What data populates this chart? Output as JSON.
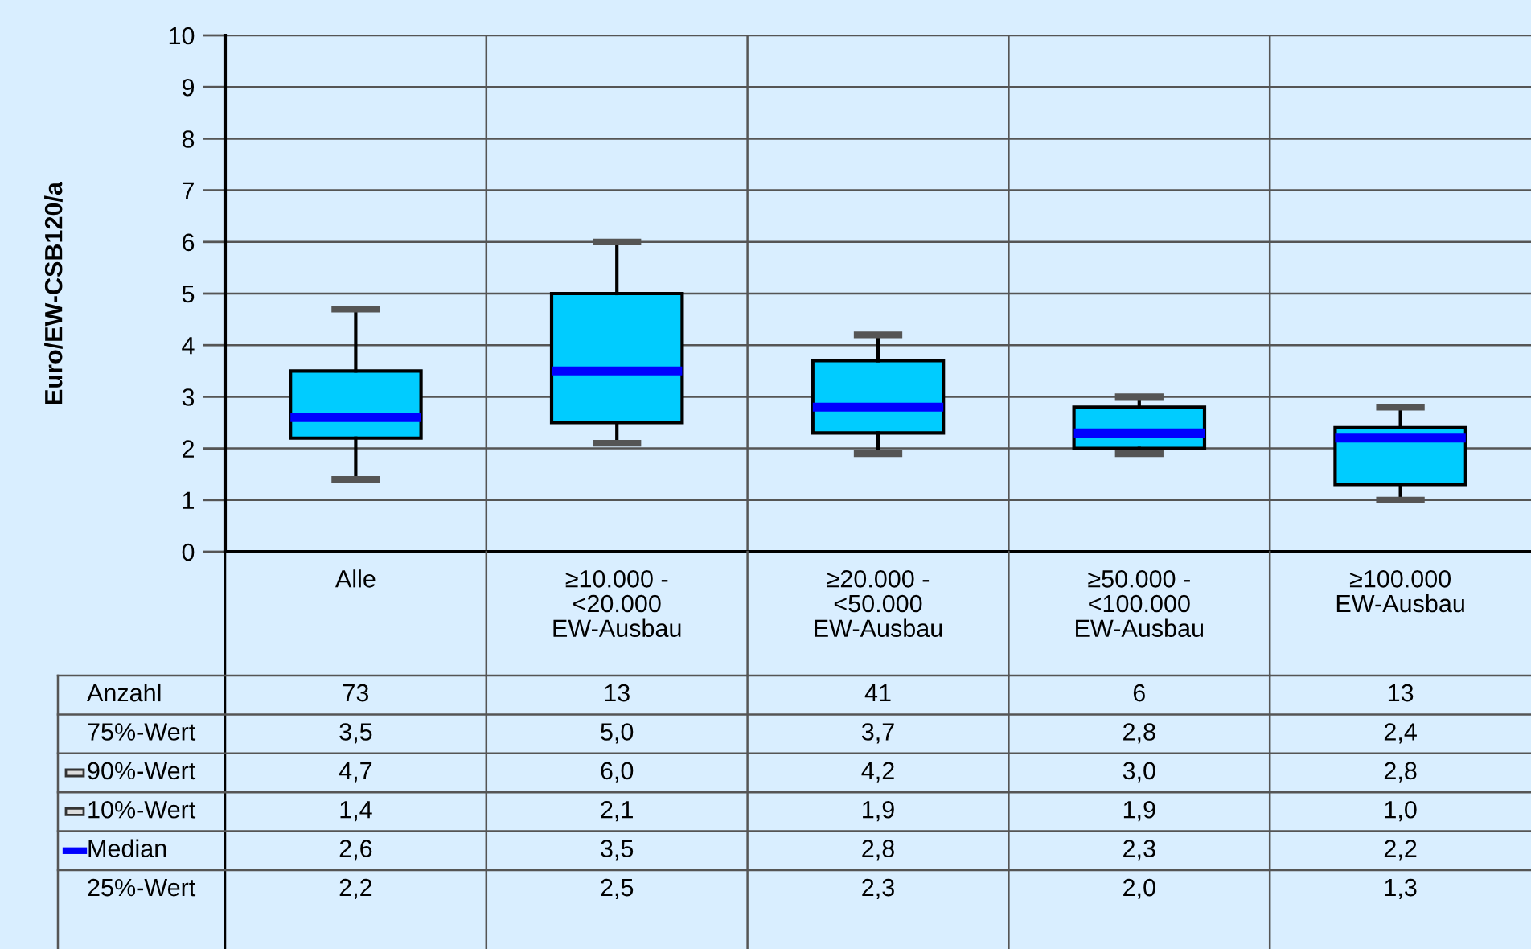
{
  "chart_data": {
    "type": "box",
    "ylabel": "Euro/EW-CSB120/a",
    "categories": [
      "Alle",
      "≥10.000 -\n<20.000\nEW-Ausbau",
      "≥20.000 -\n<50.000\nEW-Ausbau",
      "≥50.000 -\n<100.000\nEW-Ausbau",
      "≥100.000\nEW-Ausbau"
    ],
    "series": [
      {
        "color": "#00ccff",
        "boxes": [
          {
            "low": 1.4,
            "q1": 2.2,
            "median": 2.6,
            "q3": 3.5,
            "high": 4.7
          },
          {
            "low": 2.1,
            "q1": 2.5,
            "median": 3.5,
            "q3": 5.0,
            "high": 6.0
          },
          {
            "low": 1.9,
            "q1": 2.3,
            "median": 2.8,
            "q3": 3.7,
            "high": 4.2
          },
          {
            "low": 1.9,
            "q1": 2.0,
            "median": 2.3,
            "q3": 2.8,
            "high": 3.0
          },
          {
            "low": 1.0,
            "q1": 1.3,
            "median": 2.2,
            "q3": 2.4,
            "high": 2.8
          }
        ]
      }
    ],
    "ylim": [
      0,
      10
    ],
    "yticks": [
      0,
      1,
      2,
      3,
      4,
      5,
      6,
      7,
      8,
      9,
      10
    ],
    "grid": true,
    "annotations": [
      "Anzahl",
      "73",
      "13",
      "41",
      "6",
      "13",
      "75%-Wert",
      "3,5",
      "5,0",
      "3,7",
      "2,8",
      "2,4",
      "90%-Wert",
      "4,7",
      "6,0",
      "4,2",
      "3,0",
      "2,8",
      "10%-Wert",
      "1,4",
      "2,1",
      "1,9",
      "1,9",
      "1,0",
      "Median",
      "2,6",
      "3,5",
      "2,8",
      "2,3",
      "2,2",
      "25%-Wert",
      "2,2",
      "2,5",
      "2,3",
      "2,0",
      "1,3"
    ]
  }
}
